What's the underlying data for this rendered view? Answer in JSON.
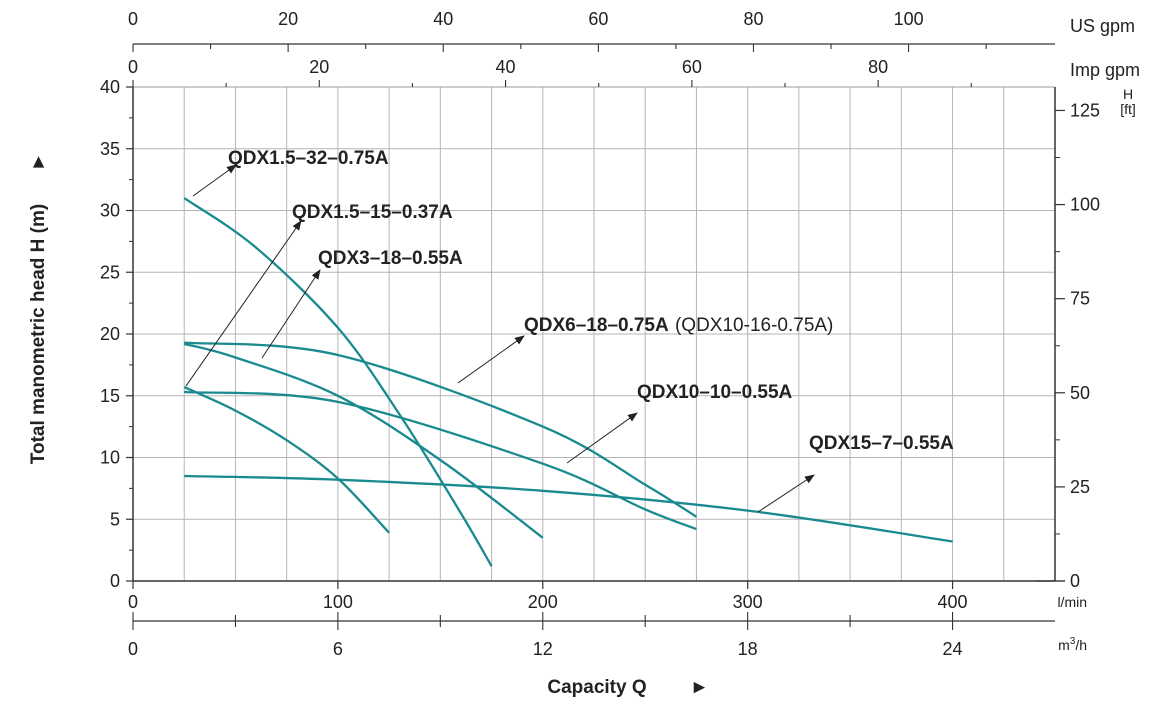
{
  "chart_data": {
    "type": "line",
    "xlabel": "Capacity Q",
    "ylabel": "Total manometric head H (m)",
    "x_unit": "l/min",
    "y_unit": "m",
    "xlim": [
      0,
      440
    ],
    "ylim": [
      0,
      40
    ],
    "grid": true,
    "x_ticks": [
      0,
      100,
      200,
      300,
      400
    ],
    "y_ticks": [
      0,
      5,
      10,
      15,
      20,
      25,
      30,
      35,
      40
    ],
    "secondary_axes": {
      "us_gpm": {
        "label": "US gpm",
        "ticks": [
          0,
          20,
          40,
          60,
          80,
          100
        ]
      },
      "imp_gpm": {
        "label": "Imp gpm",
        "ticks": [
          0,
          20,
          40,
          60,
          80
        ]
      },
      "m3h": {
        "label_base": "m",
        "label_sup": "3",
        "label_tail": "/h",
        "ticks": [
          0,
          6,
          12,
          18,
          24
        ]
      },
      "ft": {
        "label_top": "H",
        "label_bottom": "[ft]",
        "ticks": [
          0,
          25,
          50,
          75,
          100,
          125
        ]
      }
    },
    "series": [
      {
        "name": "QDX1.5-32-0.75A",
        "name_extra": "",
        "x": [
          25,
          60,
          100,
          130,
          160,
          175
        ],
        "y": [
          31,
          27,
          20.5,
          13.5,
          5.5,
          1.2
        ]
      },
      {
        "name": "QDX1.5-15-0.37A",
        "name_extra": "",
        "x": [
          25,
          50,
          75,
          100,
          125
        ],
        "y": [
          15.7,
          13.8,
          11.4,
          8.3,
          3.9
        ]
      },
      {
        "name": "QDX3-18-0.55A",
        "name_extra": "",
        "x": [
          25,
          50,
          100,
          150,
          200
        ],
        "y": [
          19.2,
          18.1,
          15.0,
          9.8,
          3.5
        ]
      },
      {
        "name": "QDX6-18-0.75A",
        "name_extra": "(QDX10-16-0.75A)",
        "x": [
          25,
          100,
          200,
          250,
          275
        ],
        "y": [
          19.3,
          18.3,
          12.5,
          7.8,
          5.2
        ]
      },
      {
        "name": "QDX10-10-0.55A",
        "name_extra": "",
        "x": [
          25,
          100,
          200,
          250,
          275
        ],
        "y": [
          15.3,
          14.5,
          9.5,
          5.8,
          4.2
        ]
      },
      {
        "name": "QDX15-7-0.55A",
        "name_extra": "",
        "x": [
          25,
          100,
          200,
          300,
          400
        ],
        "y": [
          8.5,
          8.2,
          7.3,
          5.7,
          3.2
        ]
      }
    ]
  }
}
